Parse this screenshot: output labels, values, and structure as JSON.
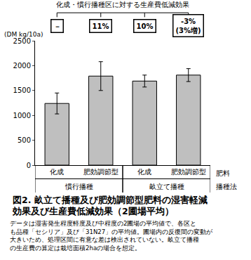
{
  "chart_data": {
    "type": "bar",
    "title": "図2. 畝立て播種及び肥効調節型肥料の湿害軽減\n効果及び生産費低減効果（2圃場平均）",
    "note": "データは湿害発生程度軽度及び中程度の2圃場の平均値で、各区と\nも品種「セシリア」及び「31N27」の平均値。圃場内の反復間の変動が\n大きいため、処理区間に有意な差は検出されていない。畝立て播種\nの生産費の算定は栽培面積2haの場合を想定。",
    "y_label": "(DM kg/10a)",
    "categories": [
      "化成",
      "肥効調節型",
      "化成",
      "肥効調節型"
    ],
    "values": [
      1240,
      1790,
      1690,
      1810
    ],
    "error": [
      210,
      290,
      120,
      130
    ],
    "color": "#bfbfbf",
    "groups": [
      {
        "label": "慣行播種",
        "categories": [
          0,
          1
        ]
      },
      {
        "label": "畝立て播種",
        "categories": [
          2,
          3
        ]
      }
    ],
    "row_labels": [
      "肥料",
      "播種法"
    ],
    "top_label": "化成・慣行播種区に対する生産費低減効果",
    "box_labels": [
      "－",
      "11%",
      "10%",
      "-3%\n(3%増)"
    ],
    "ylim": [
      0,
      2500
    ],
    "yticks": [
      0,
      500,
      1000,
      1500,
      2000,
      2500
    ],
    "grid": false
  }
}
